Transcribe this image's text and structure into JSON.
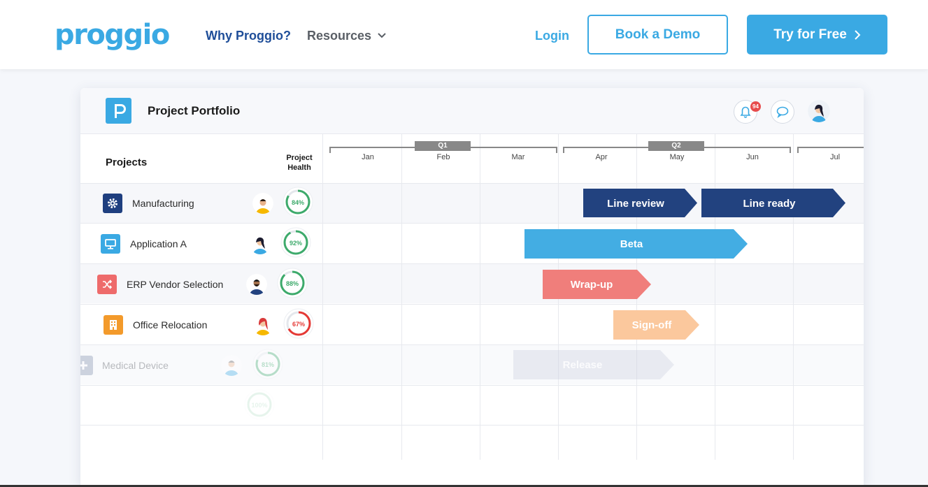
{
  "nav": {
    "logo_text": "proggio",
    "why": "Why Proggio?",
    "resources": "Resources",
    "login": "Login",
    "book_demo": "Book a Demo",
    "try_free": "Try for Free"
  },
  "card": {
    "title": "Project Portfolio",
    "notification_count": "94"
  },
  "table": {
    "projects_header": "Projects",
    "health_header_line1": "Project",
    "health_header_line2": "Health"
  },
  "timeline": {
    "quarters": [
      "Q1",
      "Q2"
    ],
    "months": [
      "Jan",
      "Feb",
      "Mar",
      "Apr",
      "May",
      "Jun",
      "Jul"
    ]
  },
  "rows": [
    {
      "name": "Manufacturing",
      "icon": "gear-icon",
      "icon_color": "#1f3f7f",
      "health": "84%",
      "health_value": 84,
      "health_color": "#3daa6b",
      "bars": [
        {
          "label": "Line review",
          "color": "#22427f"
        },
        {
          "label": "Line ready",
          "color": "#22427f"
        }
      ]
    },
    {
      "name": "Application A",
      "icon": "monitor-icon",
      "icon_color": "#3aa9e3",
      "health": "92%",
      "health_value": 92,
      "health_color": "#3daa6b",
      "bars": [
        {
          "label": "Beta",
          "color": "#43ade3"
        }
      ]
    },
    {
      "name": "ERP Vendor Selection",
      "icon": "shuffle-icon",
      "icon_color": "#ee6b6b",
      "health": "88%",
      "health_value": 88,
      "health_color": "#3daa6b",
      "bars": [
        {
          "label": "Wrap-up",
          "color": "#f07e7b"
        }
      ]
    },
    {
      "name": "Office Relocation",
      "icon": "building-icon",
      "icon_color": "#f39a2b",
      "health": "67%",
      "health_value": 67,
      "health_color": "#e53935",
      "bars": [
        {
          "label": "Sign-off",
          "color": "#fbc89d"
        }
      ]
    },
    {
      "name": "Medical Device",
      "icon": "plus-icon",
      "icon_color": "#7b8aa8",
      "health": "81%",
      "health_value": 81,
      "health_color": "#3daa6b",
      "bars": [
        {
          "label": "Release",
          "color": "#c9cfdd"
        }
      ]
    },
    {
      "name": "",
      "icon": "",
      "icon_color": "#aaaaaa",
      "health": "100%",
      "health_value": 100,
      "health_color": "#3daa6b",
      "bars": []
    }
  ]
}
